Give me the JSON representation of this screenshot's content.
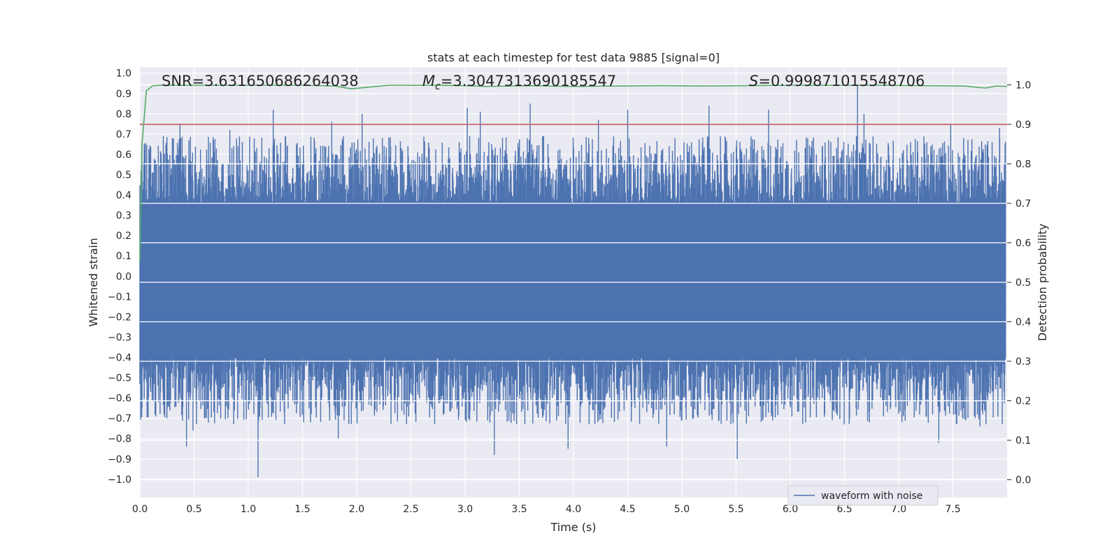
{
  "chart_data": {
    "type": "line",
    "title": "stats at each timestep for test data 9885 [signal=0]",
    "xlabel": "Time (s)",
    "ylabel": "Whitened strain",
    "y2label": "Detection probability",
    "xlim": [
      0.0,
      8.0
    ],
    "ylim": [
      -1.09,
      1.03
    ],
    "y2lim": [
      -0.045,
      1.045
    ],
    "x_ticks": [
      "0.0",
      "0.5",
      "1.0",
      "1.5",
      "2.0",
      "2.5",
      "3.0",
      "3.5",
      "4.0",
      "4.5",
      "5.0",
      "5.5",
      "6.0",
      "6.5",
      "7.0",
      "7.5"
    ],
    "y_ticks": [
      "1.0",
      "0.9",
      "0.8",
      "0.7",
      "0.6",
      "0.5",
      "0.4",
      "0.3",
      "0.2",
      "0.1",
      "0.0",
      "−0.1",
      "−0.2",
      "−0.3",
      "−0.4",
      "−0.5",
      "−0.6",
      "−0.7",
      "−0.8",
      "−0.9",
      "−1.0"
    ],
    "y2_ticks": [
      "1.0",
      "0.9",
      "0.8",
      "0.7",
      "0.6",
      "0.5",
      "0.4",
      "0.3",
      "0.2",
      "0.1",
      "0.0"
    ],
    "annotations": {
      "snr": "SNR=3.631650686264038",
      "mc_symbol": "M",
      "mc_sub": "c",
      "mc_value": "=3.3047313690185547",
      "s_symbol": "S",
      "s_value": "=0.999871015548706"
    },
    "legend": {
      "label": "waveform with noise",
      "position": "lower-right"
    },
    "threshold": {
      "value": 0.9,
      "color": "#c44e52",
      "axis": "right"
    },
    "series": [
      {
        "name": "waveform with noise",
        "axis": "left",
        "color": "#4c72b0",
        "kind": "noise",
        "sample_count": 2400,
        "core_amplitude": 0.36,
        "peaks": [
          {
            "x": 0.04,
            "y": 0.65
          },
          {
            "x": 0.37,
            "y": 0.75
          },
          {
            "x": 0.83,
            "y": 0.72
          },
          {
            "x": 1.23,
            "y": 0.82
          },
          {
            "x": 1.77,
            "y": 0.76
          },
          {
            "x": 2.05,
            "y": 0.8
          },
          {
            "x": 3.02,
            "y": 0.83
          },
          {
            "x": 3.14,
            "y": 0.81
          },
          {
            "x": 3.6,
            "y": 0.85
          },
          {
            "x": 4.23,
            "y": 0.77
          },
          {
            "x": 4.5,
            "y": 0.82
          },
          {
            "x": 5.25,
            "y": 0.84
          },
          {
            "x": 5.8,
            "y": 0.82
          },
          {
            "x": 6.62,
            "y": 0.94
          },
          {
            "x": 6.68,
            "y": 0.8
          },
          {
            "x": 7.48,
            "y": 0.75
          },
          {
            "x": 7.93,
            "y": 0.73
          },
          {
            "x": 0.43,
            "y": -0.84
          },
          {
            "x": 0.49,
            "y": -0.76
          },
          {
            "x": 1.09,
            "y": -0.99
          },
          {
            "x": 1.83,
            "y": -0.8
          },
          {
            "x": 3.27,
            "y": -0.88
          },
          {
            "x": 3.95,
            "y": -0.85
          },
          {
            "x": 4.86,
            "y": -0.84
          },
          {
            "x": 5.51,
            "y": -0.9
          },
          {
            "x": 7.37,
            "y": -0.82
          },
          {
            "x": 7.75,
            "y": -0.74
          }
        ]
      },
      {
        "name": "detection probability",
        "axis": "right",
        "color": "#55a868",
        "x": [
          0.0,
          0.02,
          0.06,
          0.12,
          0.2,
          0.5,
          1.0,
          1.5,
          1.8,
          1.95,
          2.1,
          2.3,
          2.7,
          3.0,
          3.2,
          3.6,
          4.0,
          4.4,
          4.8,
          5.2,
          5.6,
          6.0,
          6.4,
          6.8,
          7.2,
          7.6,
          7.8,
          7.9,
          8.0
        ],
        "y": [
          0.55,
          0.85,
          0.985,
          0.998,
          0.999,
          0.999,
          0.999,
          0.999,
          0.997,
          0.99,
          0.994,
          0.999,
          0.999,
          0.998,
          0.996,
          0.998,
          0.996,
          0.997,
          0.998,
          0.997,
          0.998,
          0.999,
          0.999,
          0.999,
          0.998,
          0.997,
          0.992,
          0.997,
          0.996
        ]
      }
    ]
  }
}
